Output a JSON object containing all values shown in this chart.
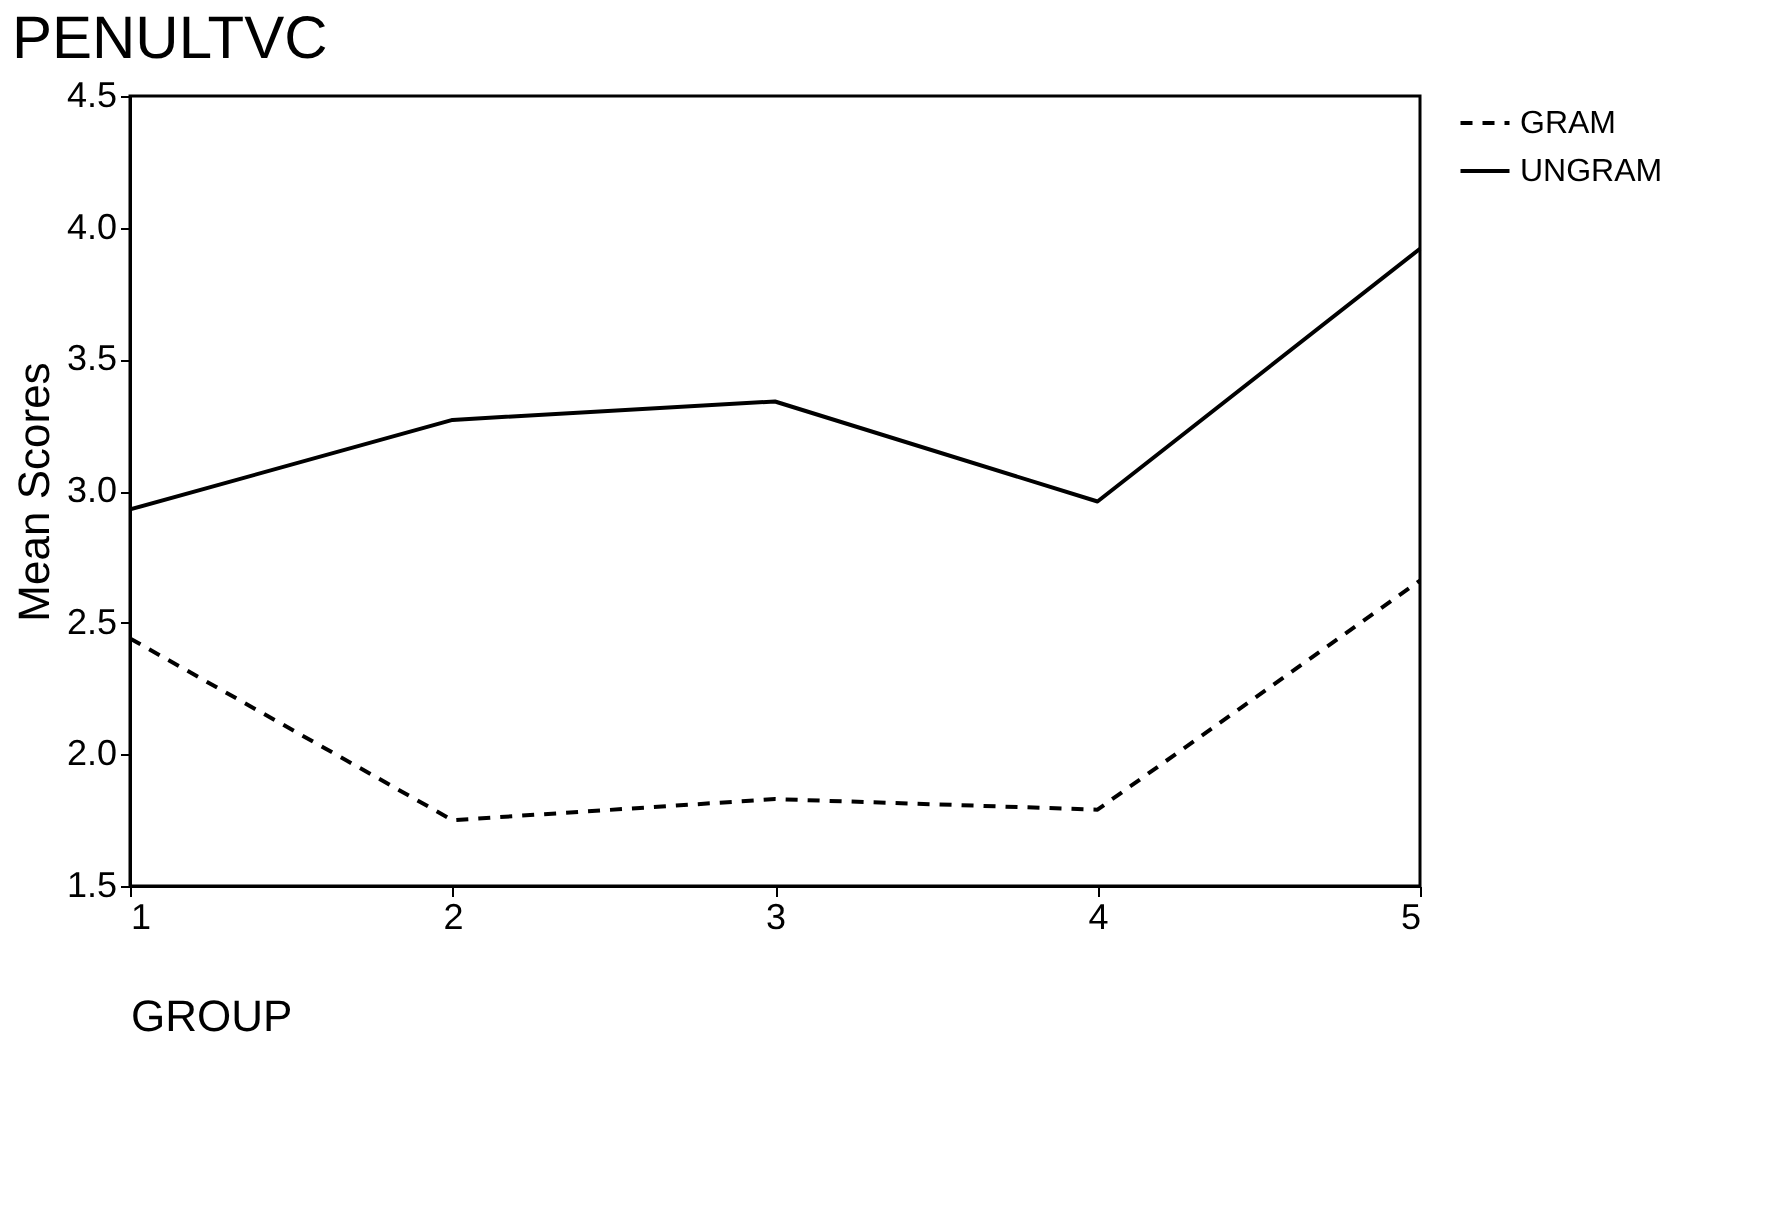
{
  "chart_data": {
    "type": "line",
    "title": "PENULTVC",
    "xlabel": "GROUP",
    "ylabel": "Mean Scores",
    "x": [
      1,
      2,
      3,
      4,
      5
    ],
    "xlim": [
      1,
      5
    ],
    "xticks": [
      1,
      2,
      3,
      4,
      5
    ],
    "ylim": [
      1.5,
      4.5
    ],
    "yticks": [
      {
        "value": 1.5,
        "label": "1.5"
      },
      {
        "value": 2.0,
        "label": "2.0"
      },
      {
        "value": 2.5,
        "label": "2.5"
      },
      {
        "value": 3.0,
        "label": "3.0"
      },
      {
        "value": 3.5,
        "label": "3.5"
      },
      {
        "value": 4.0,
        "label": "4.0"
      },
      {
        "value": 4.5,
        "label": "4.5"
      }
    ],
    "grid": false,
    "legend": "right",
    "marker": "none",
    "series": [
      {
        "name": "GRAM",
        "color": "#000000",
        "line_style": "dashed",
        "values": [
          2.44,
          1.75,
          1.83,
          1.79,
          2.66
        ]
      },
      {
        "name": "UNGRAM",
        "color": "#000000",
        "line_style": "solid",
        "values": [
          2.93,
          3.27,
          3.34,
          2.96,
          3.92
        ]
      }
    ]
  }
}
